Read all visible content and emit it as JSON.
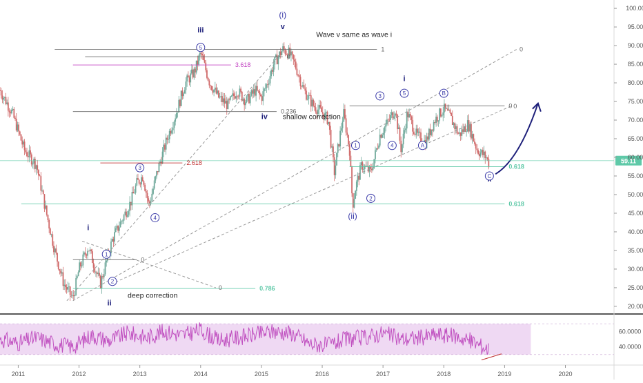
{
  "colors": {
    "candle_up": "#6fa89a",
    "candle_down": "#d06a6a",
    "wave_label": "#1d1f7a",
    "circle_label": "#3a3aa8",
    "fib_teal": "#5fc9a8",
    "fib_magenta": "#c040c0",
    "fib_red": "#c03030",
    "fib_gray": "#666666",
    "channel": "#999999",
    "arrow": "#1d1f7a",
    "rsi_line": "#c050c0",
    "rsi_band": "#efd9f3",
    "axis_text": "#555555",
    "price_tag_bg": "#5fc9a8"
  },
  "chart_data": [
    {
      "type": "line",
      "title": "",
      "xlabel": "",
      "ylabel": "",
      "x_ticks": [
        "2011",
        "2012",
        "2013",
        "2014",
        "2015",
        "2016",
        "2017",
        "2018",
        "2019",
        "2020"
      ],
      "y_ticks": [
        "20.00",
        "25.00",
        "30.00",
        "35.00",
        "40.00",
        "45.00",
        "50.00",
        "55.00",
        "60.00",
        "65.00",
        "70.00",
        "75.00",
        "80.00",
        "85.00",
        "90.00",
        "95.00",
        "100.00"
      ],
      "ylim": [
        18.5,
        101.5
      ],
      "xlim": [
        2010.7,
        2020.8
      ],
      "last_price": "59.11",
      "series": [
        {
          "values_note": "",
          "x": [
            2010.7,
            2010.9,
            2011.1,
            2011.3,
            2011.45,
            2011.6,
            2011.75,
            2011.9,
            2012.0,
            2012.15,
            2012.25,
            2012.35,
            2012.45,
            2012.55,
            2012.7,
            2012.85,
            2012.95,
            2013.05,
            2013.15,
            2013.3,
            2013.45,
            2013.6,
            2013.75,
            2013.9,
            2014.0,
            2014.15,
            2014.3,
            2014.45,
            2014.6,
            2014.75,
            2014.9,
            2015.0,
            2015.1,
            2015.2,
            2015.35,
            2015.45,
            2015.55,
            2015.7,
            2015.85,
            2016.0,
            2016.1,
            2016.2,
            2016.35,
            2016.45,
            2016.5,
            2016.55,
            2016.65,
            2016.8,
            2016.95,
            2017.1,
            2017.2,
            2017.3,
            2017.4,
            2017.55,
            2017.7,
            2017.85,
            2018.0,
            2018.1,
            2018.25,
            2018.4,
            2018.55,
            2018.7,
            2018.75
          ],
          "values": [
            78,
            72,
            62,
            58,
            46,
            35,
            26,
            22,
            30,
            36,
            31,
            26,
            32,
            38,
            43,
            48,
            53,
            55,
            47,
            57,
            65,
            72,
            80,
            83,
            88,
            80,
            76,
            74,
            78,
            75,
            78,
            76,
            80,
            85,
            89,
            88,
            85,
            78,
            74,
            72,
            70,
            56,
            72,
            62,
            47,
            52,
            58,
            56,
            66,
            70,
            73,
            62,
            72,
            66,
            64,
            70,
            73,
            71,
            66,
            69,
            62,
            60,
            58
          ]
        }
      ],
      "wave_labels": [
        {
          "text": "iii",
          "x": 2014.0,
          "y": 93.5
        },
        {
          "text": "(i)",
          "x": 2015.35,
          "y": 97.5
        },
        {
          "text": "v",
          "x": 2015.35,
          "y": 94.5
        },
        {
          "text": "i",
          "x": 2012.15,
          "y": 40.5
        },
        {
          "text": "ii",
          "x": 2012.5,
          "y": 20.3
        },
        {
          "text": "iv",
          "x": 2015.05,
          "y": 70.3
        },
        {
          "text": "i",
          "x": 2017.35,
          "y": 80.5
        },
        {
          "text": "(ii)",
          "x": 2016.5,
          "y": 43.5
        },
        {
          "text": "ii",
          "x": 2018.75,
          "y": 53.5
        }
      ],
      "circle_labels": [
        {
          "text": "5",
          "x": 2014.0,
          "y": 89.5
        },
        {
          "text": "3",
          "x": 2013.0,
          "y": 57.2
        },
        {
          "text": "4",
          "x": 2013.25,
          "y": 43.8
        },
        {
          "text": "1",
          "x": 2012.45,
          "y": 34.0
        },
        {
          "text": "2",
          "x": 2012.55,
          "y": 26.7
        },
        {
          "text": "1",
          "x": 2016.55,
          "y": 63.2
        },
        {
          "text": "2",
          "x": 2016.8,
          "y": 49.0
        },
        {
          "text": "3",
          "x": 2016.95,
          "y": 76.5
        },
        {
          "text": "4",
          "x": 2017.15,
          "y": 63.2
        },
        {
          "text": "5",
          "x": 2017.35,
          "y": 77.2
        },
        {
          "text": "A",
          "x": 2017.65,
          "y": 63.2
        },
        {
          "text": "B",
          "x": 2018.0,
          "y": 77.2
        },
        {
          "text": "C",
          "x": 2018.75,
          "y": 55.0
        }
      ],
      "annotations": [
        {
          "text": "Wave v same as wave i",
          "x": 2015.9,
          "y": 92.3
        },
        {
          "text": "shallow correction",
          "x": 2015.35,
          "y": 70.3
        },
        {
          "text": "deep correction",
          "x": 2012.8,
          "y": 22.3
        }
      ],
      "fib_lines": [
        {
          "label": "1",
          "x1": 2011.6,
          "x2": 2016.9,
          "y": 89.0,
          "color": "gray"
        },
        {
          "label": "0",
          "x1": 2012.1,
          "x2": 2015.35,
          "y": 87.0,
          "color": "gray"
        },
        {
          "label": "3.618",
          "x1": 2011.9,
          "x2": 2014.5,
          "y": 84.8,
          "color": "magenta"
        },
        {
          "label": "0.236",
          "x1": 2011.9,
          "x2": 2015.25,
          "y": 72.3,
          "color": "gray"
        },
        {
          "label": "0",
          "x1": 2016.45,
          "x2": 2019.0,
          "y": 73.8,
          "color": "gray"
        },
        {
          "label": "2.618",
          "x1": 2012.35,
          "x2": 2013.7,
          "y": 58.5,
          "color": "red"
        },
        {
          "label": "0.618",
          "x1": 2016.45,
          "x2": 2019.0,
          "y": 57.5,
          "color": "teal"
        },
        {
          "label": "0.618",
          "x1": 2011.05,
          "x2": 2019.0,
          "y": 47.5,
          "color": "teal"
        },
        {
          "label": "0",
          "x1": 2011.9,
          "x2": 2012.95,
          "y": 32.5,
          "color": "gray"
        },
        {
          "label": "0.786",
          "x1": 2011.9,
          "x2": 2014.9,
          "y": 24.8,
          "color": "teal"
        }
      ],
      "channel_lines": [
        {
          "x1": 2011.8,
          "y1": 21.5,
          "x2": 2015.3,
          "y2": 87.5,
          "label": ""
        },
        {
          "x1": 2011.9,
          "y1": 21.5,
          "x2": 2019.2,
          "y2": 89.0,
          "label": "0"
        },
        {
          "x1": 2012.6,
          "y1": 26.5,
          "x2": 2019.1,
          "y2": 73.7,
          "label": "0"
        },
        {
          "x1": 2012.05,
          "y1": 37.5,
          "x2": 2014.25,
          "y2": 25.0,
          "label": "0"
        }
      ],
      "projection_arrow": {
        "from_x": 2018.85,
        "from_y": 55.5,
        "to_x": 2019.55,
        "to_y": 74.5
      }
    },
    {
      "type": "line",
      "title": "",
      "y_ticks": [
        "40.0000",
        "60.0000"
      ],
      "ylim": [
        20,
        80
      ],
      "band": [
        30,
        70
      ],
      "series": [
        {
          "values_note": "",
          "x": [
            2010.7,
            2011.0,
            2011.3,
            2011.6,
            2011.9,
            2012.2,
            2012.5,
            2012.8,
            2013.1,
            2013.4,
            2013.7,
            2014.0,
            2014.3,
            2014.6,
            2014.9,
            2015.2,
            2015.5,
            2015.8,
            2016.1,
            2016.4,
            2016.7,
            2017.0,
            2017.3,
            2017.6,
            2017.9,
            2018.2,
            2018.5,
            2018.75
          ],
          "values": [
            50,
            45,
            52,
            44,
            40,
            55,
            48,
            58,
            52,
            60,
            55,
            62,
            48,
            52,
            56,
            60,
            58,
            44,
            42,
            50,
            52,
            58,
            50,
            52,
            56,
            54,
            46,
            36
          ]
        }
      ]
    }
  ]
}
